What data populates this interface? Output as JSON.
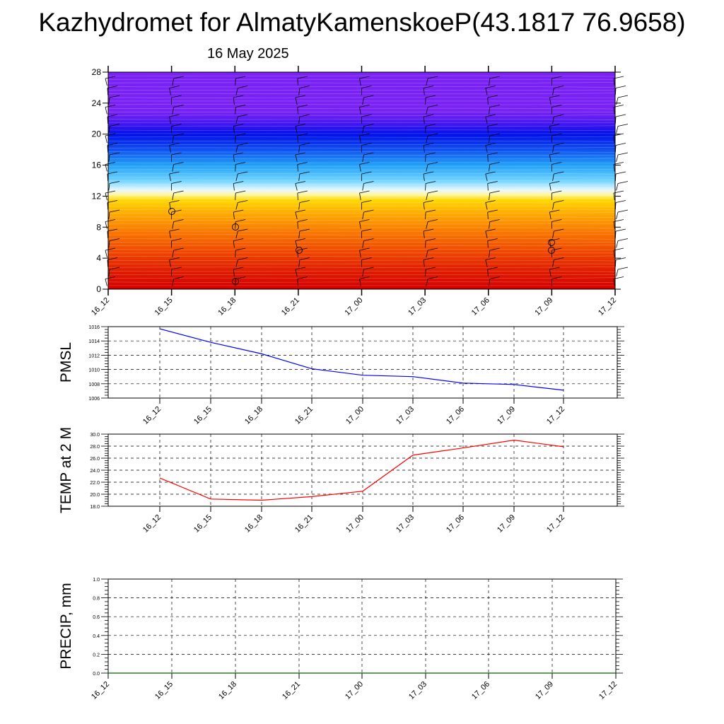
{
  "header": {
    "title": "Kazhydromet for AlmatyKamenskoeP(43.1817 76.9658)",
    "date": "16 May 2025"
  },
  "chart_data": [
    {
      "type": "heatmap",
      "y_ticks": [
        "0",
        "4",
        "8",
        "12",
        "16",
        "20",
        "24",
        "28"
      ],
      "x_ticks": [
        "16_12",
        "16_15",
        "16_18",
        "16_21",
        "17_00",
        "17_03",
        "17_06",
        "17_09",
        "17_12"
      ],
      "ylim": [
        0,
        28
      ],
      "color_scale": [
        {
          "y": 0,
          "color": "#d40000"
        },
        {
          "y": 2.5,
          "color": "#e01e00"
        },
        {
          "y": 5,
          "color": "#f04a00"
        },
        {
          "y": 7.5,
          "color": "#fa7a00"
        },
        {
          "y": 10,
          "color": "#ffb000"
        },
        {
          "y": 11.5,
          "color": "#ffd800"
        },
        {
          "y": 12.2,
          "color": "#fff7a0"
        },
        {
          "y": 12.8,
          "color": "#e8f8ff"
        },
        {
          "y": 14,
          "color": "#70d4ff"
        },
        {
          "y": 16,
          "color": "#20a0f8"
        },
        {
          "y": 18,
          "color": "#1050f0"
        },
        {
          "y": 20,
          "color": "#0010e8"
        },
        {
          "y": 21.5,
          "color": "#4a18f0"
        },
        {
          "y": 23,
          "color": "#7a22f4"
        },
        {
          "y": 28,
          "color": "#7a22f4"
        }
      ]
    },
    {
      "type": "line",
      "ylabel": "PMSL",
      "x": [
        "16_12",
        "16_15",
        "16_18",
        "16_21",
        "17_00",
        "17_03",
        "17_06",
        "17_09",
        "17_12"
      ],
      "series": [
        {
          "values": [
            1015.7,
            1013.8,
            1012.2,
            1010.1,
            1009.2,
            1009.0,
            1008.1,
            1007.9,
            1007.1
          ],
          "color": "#0000ff"
        }
      ],
      "ylim": [
        1006,
        1016
      ],
      "y_ticks": [
        "1006",
        "1008",
        "1010",
        "1012",
        "1014",
        "1016"
      ],
      "grid": true
    },
    {
      "type": "line",
      "ylabel": "TEMP at 2 M",
      "x": [
        "16_12",
        "16_15",
        "16_18",
        "16_21",
        "17_00",
        "17_03",
        "17_06",
        "17_09",
        "17_12"
      ],
      "series": [
        {
          "values": [
            22.7,
            19.2,
            19.0,
            19.6,
            20.5,
            26.5,
            27.7,
            29.0,
            27.9
          ],
          "color": "#ff0000"
        }
      ],
      "ylim": [
        18,
        30
      ],
      "y_ticks": [
        "18.0",
        "20.0",
        "22.0",
        "24.0",
        "26.0",
        "28.0",
        "30.0"
      ],
      "grid": true
    },
    {
      "type": "line",
      "ylabel": "PRECIP, mm",
      "x_ticks": [
        "16_12",
        "16_15",
        "16_18",
        "16_21",
        "17_00",
        "17_03",
        "17_06",
        "17_09",
        "17_12"
      ],
      "series": [
        {
          "values": [
            0.0,
            0.0,
            0.0,
            0.0,
            0.0,
            0.0,
            0.0,
            0.0,
            0.0
          ],
          "color": "#006400"
        }
      ],
      "ylim": [
        0,
        1
      ],
      "y_ticks": [
        "0.0",
        "0.2",
        "0.4",
        "0.6",
        "0.8",
        "1.0"
      ],
      "grid": true
    }
  ]
}
